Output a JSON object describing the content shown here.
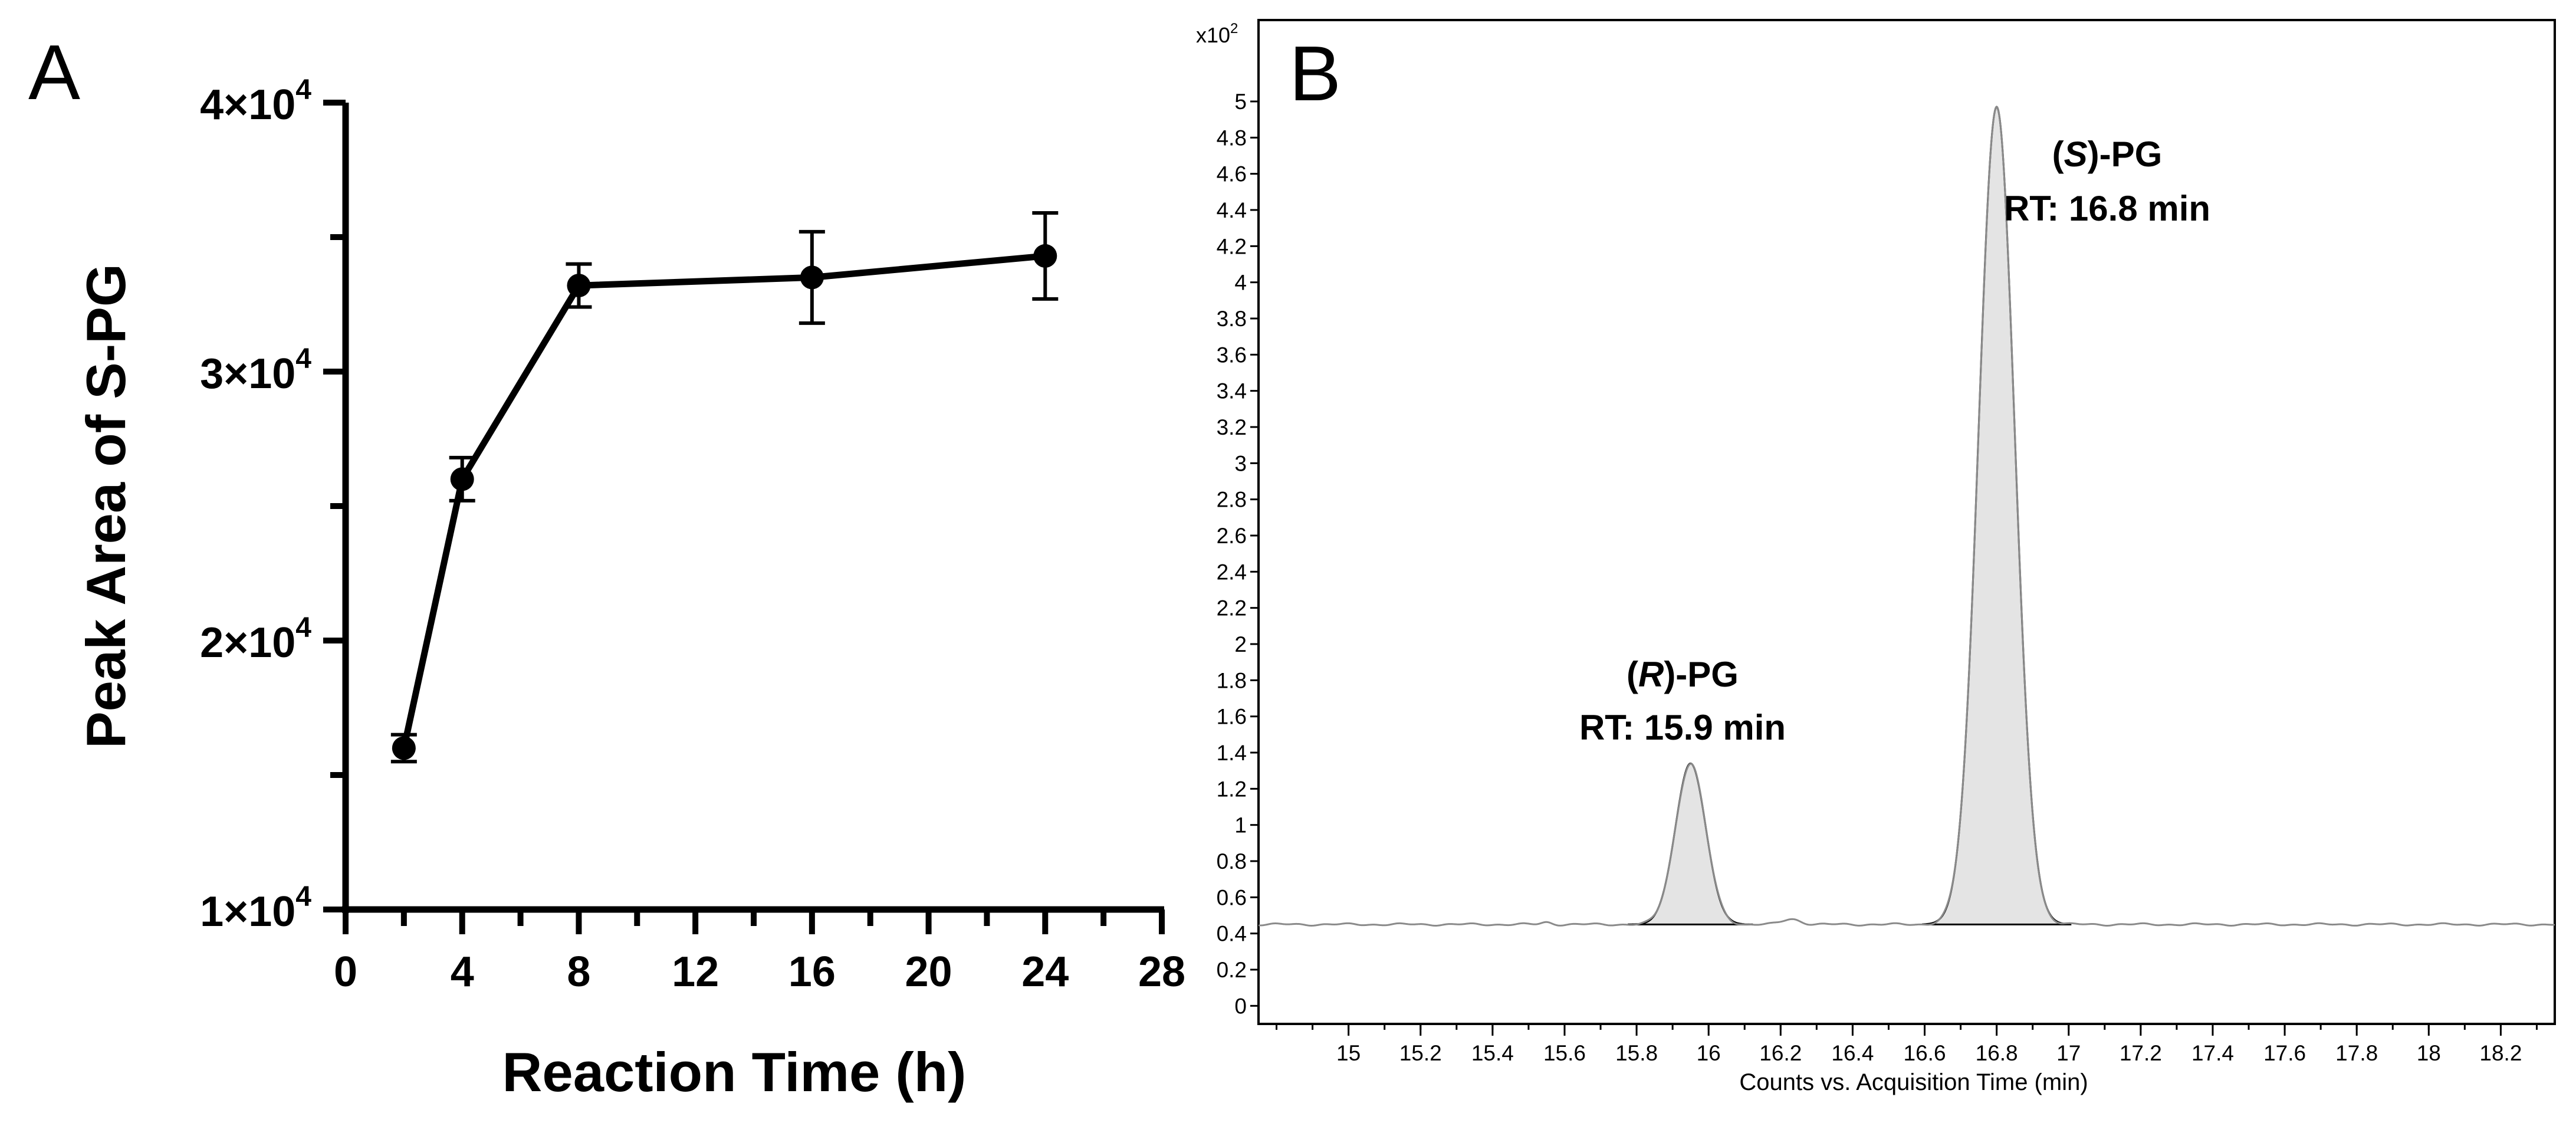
{
  "chart_data": [
    {
      "panel": "A",
      "type": "line",
      "title": "",
      "xlabel": "Reaction Time (h)",
      "ylabel": "Peak Area of S-PG",
      "xlim": [
        0,
        28
      ],
      "ylim": [
        10000,
        40000
      ],
      "x_ticks": [
        "0",
        "4",
        "8",
        "12",
        "16",
        "20",
        "24",
        "28"
      ],
      "y_ticks": [
        {
          "value": 10000,
          "label": "1×10",
          "exp": "4"
        },
        {
          "value": 20000,
          "label": "2×10",
          "exp": "4"
        },
        {
          "value": 30000,
          "label": "3×10",
          "exp": "4"
        },
        {
          "value": 40000,
          "label": "4×10",
          "exp": "4"
        }
      ],
      "x": [
        2,
        4,
        8,
        16,
        24
      ],
      "values": [
        16000,
        26000,
        33200,
        33500,
        34300
      ],
      "error": [
        500,
        800,
        800,
        1700,
        1600
      ],
      "grid": false
    },
    {
      "panel": "B",
      "type": "line",
      "title": "",
      "xlabel": "Counts vs. Acquisition Time (min)",
      "ylabel": "",
      "y_multiplier": "x10",
      "y_multiplier_exp": "2",
      "xlim": [
        14.75,
        18.35
      ],
      "ylim": [
        -0.1,
        5.45
      ],
      "x_ticks": [
        "15",
        "15.2",
        "15.4",
        "15.6",
        "15.8",
        "16",
        "16.2",
        "16.4",
        "16.6",
        "16.8",
        "17",
        "17.2",
        "17.4",
        "17.6",
        "17.8",
        "18",
        "18.2"
      ],
      "y_ticks": [
        "0",
        "0.2",
        "0.4",
        "0.6",
        "0.8",
        "1",
        "1.2",
        "1.4",
        "1.6",
        "1.8",
        "2",
        "2.2",
        "2.4",
        "2.6",
        "2.8",
        "3",
        "3.2",
        "3.4",
        "3.6",
        "3.8",
        "4",
        "4.2",
        "4.4",
        "4.6",
        "4.8",
        "5"
      ],
      "baseline": 0.45,
      "peaks": [
        {
          "name": "(R)-PG",
          "rt": 15.95,
          "height": 1.34,
          "label_rt": "RT: 15.9 min"
        },
        {
          "name": "(S)-PG",
          "rt": 16.8,
          "height": 4.97,
          "label_rt": "RT: 16.8 min"
        }
      ],
      "grid": false
    }
  ],
  "labels": {
    "panel_a": "A",
    "panel_b": "B",
    "r_prefix": "(",
    "r_italic": "R",
    "r_suffix": ")-PG",
    "s_prefix": "(",
    "s_italic": "S",
    "s_suffix": ")-PG"
  },
  "colors": {
    "line": "#000000",
    "peak_fill": "#e4e4e4",
    "baseline": "#8a8a8a"
  }
}
